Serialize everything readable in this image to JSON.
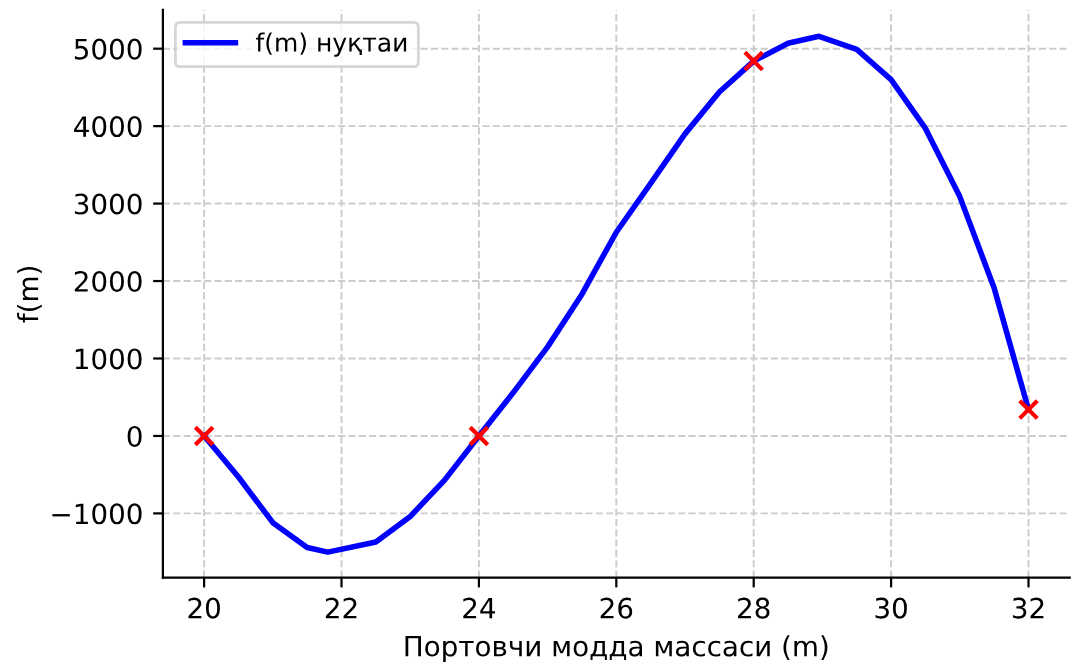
{
  "chart_data": {
    "type": "line",
    "xlabel": "Портовчи модда массаси (m)",
    "ylabel": "f(m)",
    "xlim": [
      19.4,
      32.6
    ],
    "ylim": [
      -1830,
      5500
    ],
    "xticks": [
      20,
      22,
      24,
      26,
      28,
      30,
      32
    ],
    "yticks": [
      {
        "value": -1000,
        "label": "−1000"
      },
      0,
      1000,
      2000,
      3000,
      4000,
      5000
    ],
    "grid": true,
    "legend": "top left",
    "series": [
      {
        "name": "f(m) нуқтаи",
        "color": "#0000ff",
        "marker": "none",
        "line_style": "solid",
        "x": [
          20,
          20.5,
          21,
          21.5,
          21.8,
          22.5,
          23,
          23.5,
          24,
          24.5,
          25,
          25.5,
          26,
          26.5,
          27,
          27.5,
          28,
          28.5,
          28.95,
          29.5,
          30,
          30.5,
          31,
          31.5,
          32
        ],
        "values": [
          0,
          -530,
          -1120,
          -1440,
          -1500,
          -1370,
          -1040,
          -570,
          0,
          560,
          1150,
          1830,
          2630,
          3260,
          3900,
          4440,
          4840,
          5070,
          5160,
          4990,
          4600,
          3970,
          3090,
          1910,
          340
        ]
      },
      {
        "color": "#ff0000",
        "type": "scatter",
        "marker": "cross",
        "x": [
          20,
          24,
          28,
          32
        ],
        "values": [
          0,
          0,
          4840,
          340
        ]
      }
    ]
  }
}
